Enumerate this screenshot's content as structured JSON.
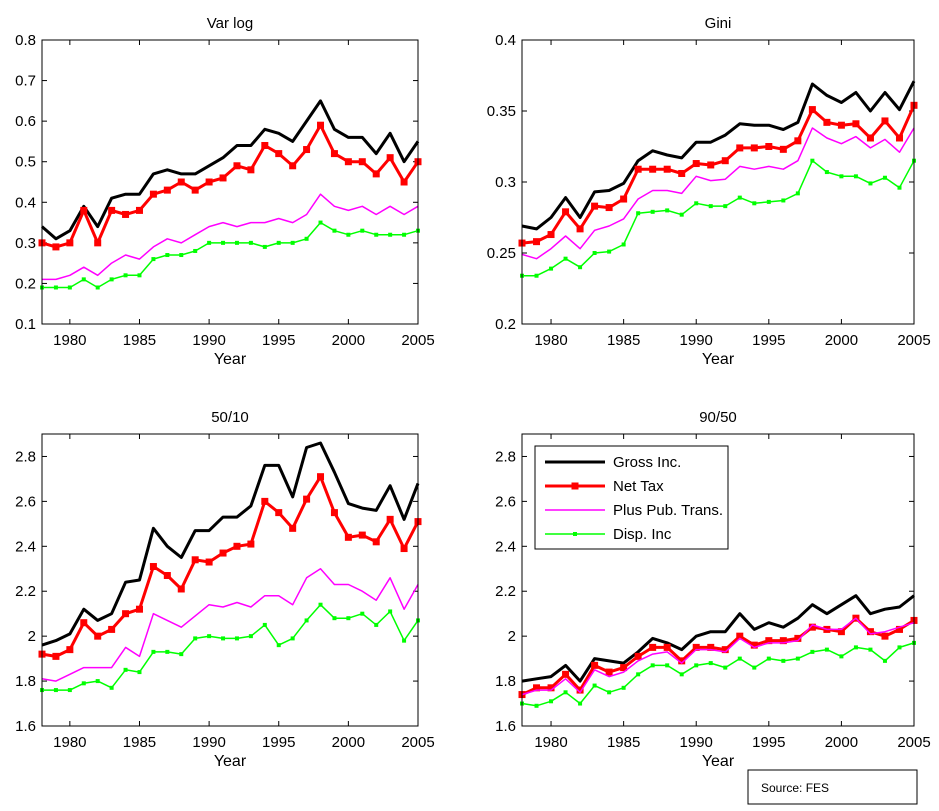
{
  "source_note": "Source: FES",
  "chart_data": [
    {
      "type": "line",
      "title": "Var log",
      "xlabel": "Year",
      "ylabel": "",
      "xlim": [
        1978,
        2005
      ],
      "ylim": [
        0.1,
        0.8
      ],
      "xticks": [
        1980,
        1985,
        1990,
        1995,
        2000,
        2005
      ],
      "yticks": [
        0.1,
        0.2,
        0.3,
        0.4,
        0.5,
        0.6,
        0.7,
        0.8
      ],
      "x": [
        1978,
        1979,
        1980,
        1981,
        1982,
        1983,
        1984,
        1985,
        1986,
        1987,
        1988,
        1989,
        1990,
        1991,
        1992,
        1993,
        1994,
        1995,
        1996,
        1997,
        1998,
        1999,
        2000,
        2001,
        2002,
        2003,
        2004,
        2005
      ],
      "series": [
        {
          "name": "Gross Inc.",
          "color": "#000000",
          "marker": "none",
          "values": [
            0.34,
            0.31,
            0.33,
            0.39,
            0.34,
            0.41,
            0.42,
            0.42,
            0.47,
            0.48,
            0.47,
            0.47,
            0.49,
            0.51,
            0.54,
            0.54,
            0.58,
            0.57,
            0.55,
            0.6,
            0.65,
            0.58,
            0.56,
            0.56,
            0.52,
            0.57,
            0.5,
            0.55
          ]
        },
        {
          "name": "Net Tax",
          "color": "#ff0000",
          "marker": "square",
          "values": [
            0.3,
            0.29,
            0.3,
            0.38,
            0.3,
            0.38,
            0.37,
            0.38,
            0.42,
            0.43,
            0.45,
            0.43,
            0.45,
            0.46,
            0.49,
            0.48,
            0.54,
            0.52,
            0.49,
            0.53,
            0.59,
            0.52,
            0.5,
            0.5,
            0.47,
            0.51,
            0.45,
            0.5
          ]
        },
        {
          "name": "Plus Pub. Trans.",
          "color": "#ff00ff",
          "marker": "none",
          "values": [
            0.21,
            0.21,
            0.22,
            0.24,
            0.22,
            0.25,
            0.27,
            0.26,
            0.29,
            0.31,
            0.3,
            0.32,
            0.34,
            0.35,
            0.34,
            0.35,
            0.35,
            0.36,
            0.35,
            0.37,
            0.42,
            0.39,
            0.38,
            0.39,
            0.37,
            0.39,
            0.37,
            0.39
          ]
        },
        {
          "name": "Disp. Inc",
          "color": "#00ff00",
          "marker": "square",
          "values": [
            0.19,
            0.19,
            0.19,
            0.21,
            0.19,
            0.21,
            0.22,
            0.22,
            0.26,
            0.27,
            0.27,
            0.28,
            0.3,
            0.3,
            0.3,
            0.3,
            0.29,
            0.3,
            0.3,
            0.31,
            0.35,
            0.33,
            0.32,
            0.33,
            0.32,
            0.32,
            0.32,
            0.33
          ]
        }
      ]
    },
    {
      "type": "line",
      "title": "Gini",
      "xlabel": "Year",
      "ylabel": "",
      "xlim": [
        1978,
        2005
      ],
      "ylim": [
        0.2,
        0.4
      ],
      "xticks": [
        1980,
        1985,
        1990,
        1995,
        2000,
        2005
      ],
      "yticks": [
        0.2,
        0.25,
        0.3,
        0.35,
        0.4
      ],
      "x": [
        1978,
        1979,
        1980,
        1981,
        1982,
        1983,
        1984,
        1985,
        1986,
        1987,
        1988,
        1989,
        1990,
        1991,
        1992,
        1993,
        1994,
        1995,
        1996,
        1997,
        1998,
        1999,
        2000,
        2001,
        2002,
        2003,
        2004,
        2005
      ],
      "series": [
        {
          "name": "Gross Inc.",
          "color": "#000000",
          "marker": "none",
          "values": [
            0.269,
            0.267,
            0.275,
            0.289,
            0.275,
            0.293,
            0.294,
            0.299,
            0.315,
            0.322,
            0.319,
            0.317,
            0.328,
            0.328,
            0.333,
            0.341,
            0.34,
            0.34,
            0.337,
            0.342,
            0.369,
            0.361,
            0.356,
            0.363,
            0.35,
            0.363,
            0.351,
            0.371
          ]
        },
        {
          "name": "Net Tax",
          "color": "#ff0000",
          "marker": "square",
          "values": [
            0.257,
            0.258,
            0.263,
            0.279,
            0.267,
            0.283,
            0.282,
            0.288,
            0.309,
            0.309,
            0.309,
            0.306,
            0.313,
            0.312,
            0.315,
            0.324,
            0.324,
            0.325,
            0.323,
            0.329,
            0.351,
            0.342,
            0.34,
            0.341,
            0.331,
            0.343,
            0.331,
            0.354
          ]
        },
        {
          "name": "Plus Pub. Trans.",
          "color": "#ff00ff",
          "marker": "none",
          "values": [
            0.249,
            0.246,
            0.253,
            0.262,
            0.253,
            0.266,
            0.269,
            0.274,
            0.288,
            0.294,
            0.294,
            0.292,
            0.304,
            0.301,
            0.302,
            0.311,
            0.309,
            0.311,
            0.309,
            0.315,
            0.338,
            0.331,
            0.327,
            0.332,
            0.324,
            0.33,
            0.321,
            0.338
          ]
        },
        {
          "name": "Disp. Inc",
          "color": "#00ff00",
          "marker": "square",
          "values": [
            0.234,
            0.234,
            0.239,
            0.246,
            0.24,
            0.25,
            0.251,
            0.256,
            0.278,
            0.279,
            0.28,
            0.277,
            0.285,
            0.283,
            0.283,
            0.289,
            0.285,
            0.286,
            0.287,
            0.292,
            0.315,
            0.307,
            0.304,
            0.304,
            0.299,
            0.303,
            0.296,
            0.315
          ]
        }
      ]
    },
    {
      "type": "line",
      "title": "50/10",
      "xlabel": "Year",
      "ylabel": "",
      "xlim": [
        1978,
        2005
      ],
      "ylim": [
        1.6,
        2.9
      ],
      "xticks": [
        1980,
        1985,
        1990,
        1995,
        2000,
        2005
      ],
      "yticks": [
        1.6,
        1.8,
        2.0,
        2.2,
        2.4,
        2.6,
        2.8
      ],
      "ytick_labels": [
        "1.6",
        "1.8",
        "2",
        "2.2",
        "2.4",
        "2.6",
        "2.8"
      ],
      "x": [
        1978,
        1979,
        1980,
        1981,
        1982,
        1983,
        1984,
        1985,
        1986,
        1987,
        1988,
        1989,
        1990,
        1991,
        1992,
        1993,
        1994,
        1995,
        1996,
        1997,
        1998,
        1999,
        2000,
        2001,
        2002,
        2003,
        2004,
        2005
      ],
      "series": [
        {
          "name": "Gross Inc.",
          "color": "#000000",
          "marker": "none",
          "values": [
            1.96,
            1.98,
            2.01,
            2.12,
            2.07,
            2.1,
            2.24,
            2.25,
            2.48,
            2.4,
            2.35,
            2.47,
            2.47,
            2.53,
            2.53,
            2.58,
            2.76,
            2.76,
            2.62,
            2.84,
            2.86,
            2.73,
            2.59,
            2.57,
            2.56,
            2.67,
            2.52,
            2.68
          ]
        },
        {
          "name": "Net Tax",
          "color": "#ff0000",
          "marker": "square",
          "values": [
            1.92,
            1.91,
            1.94,
            2.06,
            2.0,
            2.03,
            2.1,
            2.12,
            2.31,
            2.27,
            2.21,
            2.34,
            2.33,
            2.37,
            2.4,
            2.41,
            2.6,
            2.55,
            2.48,
            2.61,
            2.71,
            2.55,
            2.44,
            2.45,
            2.42,
            2.52,
            2.39,
            2.51
          ]
        },
        {
          "name": "Plus Pub. Trans.",
          "color": "#ff00ff",
          "marker": "none",
          "values": [
            1.81,
            1.8,
            1.83,
            1.86,
            1.86,
            1.86,
            1.95,
            1.91,
            2.1,
            2.07,
            2.04,
            2.09,
            2.14,
            2.13,
            2.15,
            2.13,
            2.18,
            2.18,
            2.14,
            2.26,
            2.3,
            2.23,
            2.23,
            2.2,
            2.16,
            2.26,
            2.12,
            2.23
          ]
        },
        {
          "name": "Disp. Inc",
          "color": "#00ff00",
          "marker": "square",
          "values": [
            1.76,
            1.76,
            1.76,
            1.79,
            1.8,
            1.77,
            1.85,
            1.84,
            1.93,
            1.93,
            1.92,
            1.99,
            2.0,
            1.99,
            1.99,
            2.0,
            2.05,
            1.96,
            1.99,
            2.07,
            2.14,
            2.08,
            2.08,
            2.1,
            2.05,
            2.11,
            1.98,
            2.07
          ]
        }
      ]
    },
    {
      "type": "line",
      "title": "90/50",
      "xlabel": "Year",
      "ylabel": "",
      "xlim": [
        1978,
        2005
      ],
      "ylim": [
        1.6,
        2.9
      ],
      "xticks": [
        1980,
        1985,
        1990,
        1995,
        2000,
        2005
      ],
      "yticks": [
        1.6,
        1.8,
        2.0,
        2.2,
        2.4,
        2.6,
        2.8
      ],
      "ytick_labels": [
        "1.6",
        "1.8",
        "2",
        "2.2",
        "2.4",
        "2.6",
        "2.8"
      ],
      "legend": "top-left",
      "x": [
        1978,
        1979,
        1980,
        1981,
        1982,
        1983,
        1984,
        1985,
        1986,
        1987,
        1988,
        1989,
        1990,
        1991,
        1992,
        1993,
        1994,
        1995,
        1996,
        1997,
        1998,
        1999,
        2000,
        2001,
        2002,
        2003,
        2004,
        2005
      ],
      "series": [
        {
          "name": "Gross Inc.",
          "color": "#000000",
          "marker": "none",
          "values": [
            1.8,
            1.81,
            1.82,
            1.87,
            1.8,
            1.9,
            1.89,
            1.88,
            1.93,
            1.99,
            1.97,
            1.94,
            2.0,
            2.02,
            2.02,
            2.1,
            2.03,
            2.06,
            2.04,
            2.08,
            2.14,
            2.1,
            2.14,
            2.18,
            2.1,
            2.12,
            2.13,
            2.18
          ]
        },
        {
          "name": "Net Tax",
          "color": "#ff0000",
          "marker": "square",
          "values": [
            1.74,
            1.77,
            1.77,
            1.83,
            1.76,
            1.87,
            1.84,
            1.86,
            1.91,
            1.95,
            1.95,
            1.89,
            1.95,
            1.95,
            1.94,
            2.0,
            1.96,
            1.98,
            1.98,
            1.99,
            2.04,
            2.03,
            2.02,
            2.08,
            2.02,
            2.0,
            2.03,
            2.07
          ]
        },
        {
          "name": "Plus Pub. Trans.",
          "color": "#ff00ff",
          "marker": "none",
          "values": [
            1.74,
            1.76,
            1.76,
            1.81,
            1.75,
            1.85,
            1.82,
            1.84,
            1.89,
            1.92,
            1.93,
            1.88,
            1.94,
            1.94,
            1.93,
            1.99,
            1.95,
            1.97,
            1.97,
            1.98,
            2.05,
            2.03,
            2.03,
            2.08,
            2.01,
            2.02,
            2.04,
            2.06
          ]
        },
        {
          "name": "Disp. Inc",
          "color": "#00ff00",
          "marker": "square",
          "values": [
            1.7,
            1.69,
            1.71,
            1.75,
            1.7,
            1.78,
            1.75,
            1.77,
            1.83,
            1.87,
            1.87,
            1.83,
            1.87,
            1.88,
            1.86,
            1.9,
            1.86,
            1.9,
            1.89,
            1.9,
            1.93,
            1.94,
            1.91,
            1.95,
            1.94,
            1.89,
            1.95,
            1.97
          ]
        }
      ]
    }
  ]
}
